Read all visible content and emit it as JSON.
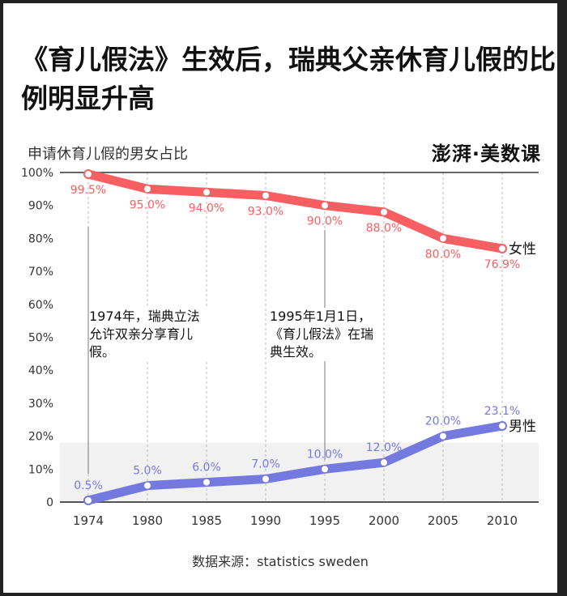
{
  "title": "《育儿假法》生效后，瑞典父亲休育儿假的比例明显升高",
  "logo": "澎湃·美数课",
  "source": "数据来源：statistics sweden",
  "chart_data": {
    "type": "line",
    "title": "申请休育儿假的男女占比",
    "categories": [
      "1974",
      "1980",
      "1985",
      "1990",
      "1995",
      "2000",
      "2005",
      "2010"
    ],
    "ylim": [
      0,
      100
    ],
    "yticks": [
      "0",
      "10%",
      "20%",
      "30%",
      "40%",
      "50%",
      "60%",
      "70%",
      "80%",
      "90%",
      "100%"
    ],
    "grid": "alternating horizontal bands, dashed vertical lines",
    "series": [
      {
        "name": "女性",
        "color": "#f75f62",
        "values": [
          99.5,
          95.0,
          94.0,
          93.0,
          90.0,
          88.0,
          80.0,
          76.9
        ],
        "labels": [
          "99.5%",
          "95.0%",
          "94.0%",
          "93.0%",
          "90.0%",
          "88.0%",
          "80.0%",
          "76.9%"
        ]
      },
      {
        "name": "男性",
        "color": "#7479e0",
        "values": [
          0.5,
          5.0,
          6.0,
          7.0,
          10.0,
          12.0,
          20.0,
          23.1
        ],
        "labels": [
          "0.5%",
          "5.0%",
          "6.0%",
          "7.0%",
          "10.0%",
          "12.0%",
          "20.0%",
          "23.1%"
        ]
      }
    ],
    "annotations": [
      {
        "category": "1974",
        "text": "1974年，瑞典立法允许双亲分享育儿假。"
      },
      {
        "category": "1995",
        "text": "1995年1月1日，《育儿假法》在瑞典生效。"
      }
    ]
  }
}
